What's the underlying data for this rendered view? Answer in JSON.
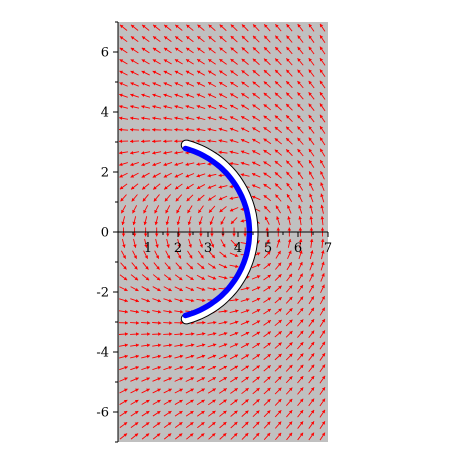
{
  "chart_data": {
    "type": "vector-field",
    "title": "",
    "xlabel": "",
    "ylabel": "",
    "xlim": [
      0,
      7
    ],
    "ylim": [
      -7,
      7
    ],
    "x_ticks": [
      1,
      2,
      3,
      4,
      5,
      6,
      7
    ],
    "x_tick_labels": [
      "1",
      "2",
      "3",
      "4",
      "5",
      "6",
      "7"
    ],
    "y_ticks": [
      -6,
      -4,
      -2,
      0,
      2,
      4,
      6
    ],
    "y_tick_labels": [
      "-6",
      "-4",
      "-2",
      "0",
      "2",
      "4",
      "6"
    ],
    "grid": false,
    "background_color": "#c0c0c0",
    "arrow_color": "#ff0000",
    "field_grid": {
      "nx": 19,
      "ny": 37
    },
    "field_description": "circulating field around a point near (4.4, 0); arrows bend around the crescent",
    "orbit": {
      "center": [
        1.5,
        0
      ],
      "radius": 3.0,
      "theta_range_deg": [
        -75,
        75
      ],
      "outline_color": "#000000",
      "band_color": "#ffffff",
      "fill_color": "#0000ff"
    }
  }
}
